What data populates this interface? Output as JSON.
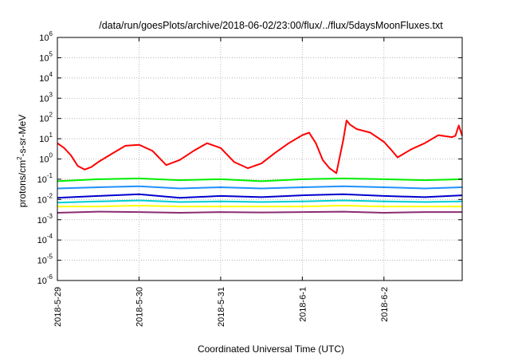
{
  "chart_data": {
    "type": "line",
    "title": "/data/run/goesPlots/archive/2018-06-02/23:00/flux/../flux/5daysMoonFluxes.txt",
    "xlabel": "Coordinated Universal Time (UTC)",
    "ylabel_parts": [
      "protons/cm",
      "2",
      "-s-sr-MeV"
    ],
    "y_scale": "log",
    "ylim": [
      1e-06,
      1000000.0
    ],
    "xlim": [
      "2018-05-29",
      "2018-06-02T23:00"
    ],
    "grid": true,
    "legend": "none",
    "x_ticks": [
      {
        "label": "2018-5-29",
        "value": "2018-05-29"
      },
      {
        "label": "2018-5-30",
        "value": "2018-05-30"
      },
      {
        "label": "2018-5-31",
        "value": "2018-05-31"
      },
      {
        "label": "2018-6-1",
        "value": "2018-06-01"
      },
      {
        "label": "2018-6-2",
        "value": "2018-06-02"
      }
    ],
    "y_ticks": [
      {
        "base": "10",
        "exp": "6",
        "value": 1000000.0
      },
      {
        "base": "10",
        "exp": "5",
        "value": 100000.0
      },
      {
        "base": "10",
        "exp": "4",
        "value": 10000.0
      },
      {
        "base": "10",
        "exp": "3",
        "value": 1000.0
      },
      {
        "base": "10",
        "exp": "2",
        "value": 100.0
      },
      {
        "base": "10",
        "exp": "1",
        "value": 10.0
      },
      {
        "base": "10",
        "exp": "0",
        "value": 1
      },
      {
        "base": "10",
        "exp": "-1",
        "value": 0.1
      },
      {
        "base": "10",
        "exp": "-2",
        "value": 0.01
      },
      {
        "base": "10",
        "exp": "-3",
        "value": 0.001
      },
      {
        "base": "10",
        "exp": "-4",
        "value": 0.0001
      },
      {
        "base": "10",
        "exp": "-5",
        "value": 1e-05
      },
      {
        "base": "10",
        "exp": "-6",
        "value": 1e-06
      }
    ],
    "series": [
      {
        "color": "#ff0000",
        "x": [
          "2018-05-29T00:00",
          "2018-05-29T02:00",
          "2018-05-29T04:00",
          "2018-05-29T06:00",
          "2018-05-29T08:00",
          "2018-05-29T10:00",
          "2018-05-29T12:00",
          "2018-05-29T16:00",
          "2018-05-29T20:00",
          "2018-05-30T00:00",
          "2018-05-30T04:00",
          "2018-05-30T08:00",
          "2018-05-30T12:00",
          "2018-05-30T16:00",
          "2018-05-30T20:00",
          "2018-05-31T00:00",
          "2018-05-31T04:00",
          "2018-05-31T08:00",
          "2018-05-31T12:00",
          "2018-05-31T16:00",
          "2018-05-31T20:00",
          "2018-06-01T00:00",
          "2018-06-01T02:00",
          "2018-06-01T04:00",
          "2018-06-01T06:00",
          "2018-06-01T08:00",
          "2018-06-01T10:00",
          "2018-06-01T12:00",
          "2018-06-01T13:00",
          "2018-06-01T14:00",
          "2018-06-01T16:00",
          "2018-06-01T20:00",
          "2018-06-02T00:00",
          "2018-06-02T02:00",
          "2018-06-02T04:00",
          "2018-06-02T08:00",
          "2018-06-02T12:00",
          "2018-06-02T16:00",
          "2018-06-02T20:00",
          "2018-06-02T21:00",
          "2018-06-02T22:00",
          "2018-06-02T23:00"
        ],
        "values": [
          6,
          3.5,
          1.5,
          0.45,
          0.3,
          0.4,
          0.7,
          1.8,
          4.5,
          5,
          2.5,
          0.5,
          0.9,
          2.5,
          6,
          3.5,
          0.7,
          0.35,
          0.6,
          2,
          6,
          15,
          20,
          6,
          0.9,
          0.35,
          0.2,
          8,
          80,
          50,
          30,
          20,
          7,
          3,
          1.2,
          3,
          6,
          15,
          12,
          14,
          45,
          14
        ]
      },
      {
        "color": "#00ee00",
        "x": [
          "2018-05-29T00:00",
          "2018-05-29T12:00",
          "2018-05-30T00:00",
          "2018-05-30T12:00",
          "2018-05-31T00:00",
          "2018-05-31T12:00",
          "2018-06-01T00:00",
          "2018-06-01T12:00",
          "2018-06-02T00:00",
          "2018-06-02T12:00",
          "2018-06-02T23:00"
        ],
        "values": [
          0.08,
          0.1,
          0.11,
          0.09,
          0.1,
          0.08,
          0.1,
          0.11,
          0.1,
          0.09,
          0.1
        ]
      },
      {
        "color": "#1e90ff",
        "x": [
          "2018-05-29T00:00",
          "2018-05-29T12:00",
          "2018-05-30T00:00",
          "2018-05-30T12:00",
          "2018-05-31T00:00",
          "2018-05-31T12:00",
          "2018-06-01T00:00",
          "2018-06-01T12:00",
          "2018-06-02T00:00",
          "2018-06-02T12:00",
          "2018-06-02T23:00"
        ],
        "values": [
          0.035,
          0.04,
          0.045,
          0.035,
          0.04,
          0.035,
          0.04,
          0.045,
          0.04,
          0.035,
          0.04
        ]
      },
      {
        "color": "#0000cd",
        "x": [
          "2018-05-29T00:00",
          "2018-05-29T12:00",
          "2018-05-30T00:00",
          "2018-05-30T12:00",
          "2018-05-31T00:00",
          "2018-05-31T12:00",
          "2018-06-01T00:00",
          "2018-06-01T12:00",
          "2018-06-02T00:00",
          "2018-06-02T12:00",
          "2018-06-02T23:00"
        ],
        "values": [
          0.012,
          0.015,
          0.018,
          0.012,
          0.015,
          0.013,
          0.016,
          0.018,
          0.015,
          0.013,
          0.016
        ]
      },
      {
        "color": "#00ced1",
        "x": [
          "2018-05-29T00:00",
          "2018-05-29T12:00",
          "2018-05-30T00:00",
          "2018-05-30T12:00",
          "2018-05-31T00:00",
          "2018-05-31T12:00",
          "2018-06-01T00:00",
          "2018-06-01T12:00",
          "2018-06-02T00:00",
          "2018-06-02T12:00",
          "2018-06-02T23:00"
        ],
        "values": [
          0.007,
          0.008,
          0.009,
          0.0075,
          0.008,
          0.0075,
          0.008,
          0.009,
          0.008,
          0.0075,
          0.008
        ]
      },
      {
        "color": "#ffff00",
        "x": [
          "2018-05-29T00:00",
          "2018-05-29T12:00",
          "2018-05-30T00:00",
          "2018-05-30T12:00",
          "2018-05-31T00:00",
          "2018-05-31T12:00",
          "2018-06-01T00:00",
          "2018-06-01T12:00",
          "2018-06-02T00:00",
          "2018-06-02T12:00",
          "2018-06-02T23:00"
        ],
        "values": [
          0.0045,
          0.0045,
          0.005,
          0.0045,
          0.0045,
          0.0045,
          0.0045,
          0.005,
          0.0045,
          0.0045,
          0.0045
        ]
      },
      {
        "color": "#8b2c70",
        "x": [
          "2018-05-29T00:00",
          "2018-05-29T12:00",
          "2018-05-30T00:00",
          "2018-05-30T12:00",
          "2018-05-31T00:00",
          "2018-05-31T12:00",
          "2018-06-01T00:00",
          "2018-06-01T12:00",
          "2018-06-02T00:00",
          "2018-06-02T12:00",
          "2018-06-02T23:00"
        ],
        "values": [
          0.0022,
          0.0025,
          0.0024,
          0.0022,
          0.0024,
          0.0023,
          0.0024,
          0.0025,
          0.0022,
          0.0024,
          0.0024
        ]
      }
    ]
  }
}
